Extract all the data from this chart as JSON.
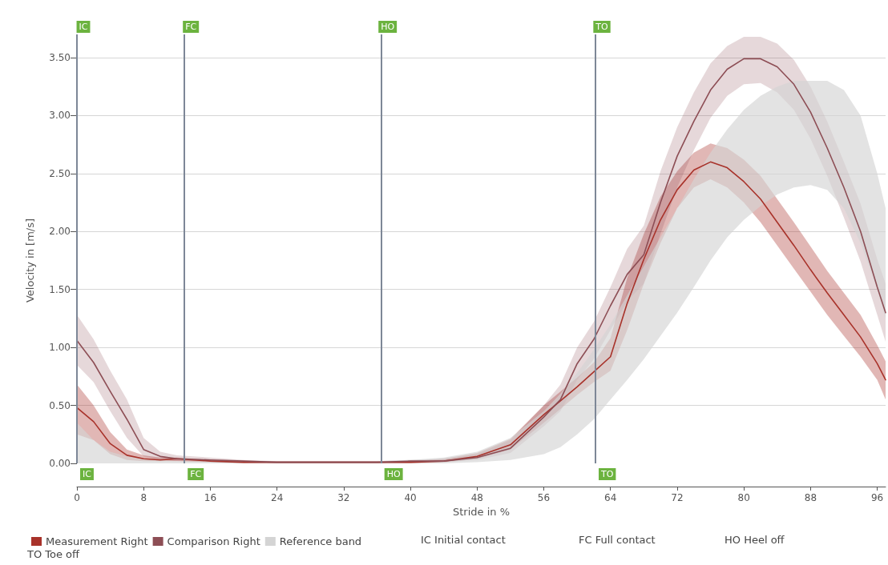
{
  "chart_data": {
    "type": "line",
    "xlabel": "Stride in %",
    "ylabel": "Velocity in [m/s]",
    "x": [
      0,
      2,
      4,
      6,
      8,
      10,
      12,
      16,
      20,
      24,
      28,
      32,
      36,
      40,
      44,
      48,
      52,
      56,
      58,
      60,
      62,
      64,
      66,
      68,
      70,
      72,
      74,
      76,
      78,
      80,
      82,
      84,
      86,
      88,
      90,
      92,
      94,
      96,
      97
    ],
    "series": [
      {
        "name": "Measurement Right",
        "color": "#a8322a",
        "values": [
          0.48,
          0.36,
          0.17,
          0.07,
          0.04,
          0.03,
          0.04,
          0.02,
          0.01,
          0.01,
          0.01,
          0.01,
          0.01,
          0.01,
          0.02,
          0.06,
          0.16,
          0.42,
          0.54,
          0.66,
          0.79,
          0.92,
          1.38,
          1.76,
          2.1,
          2.36,
          2.53,
          2.6,
          2.55,
          2.43,
          2.28,
          2.08,
          1.88,
          1.67,
          1.47,
          1.28,
          1.09,
          0.86,
          0.72
        ],
        "lower": [
          0.25,
          0.2,
          0.08,
          0.03,
          0.02,
          0.02,
          0.02,
          0.01,
          0,
          0,
          0,
          0,
          0,
          0,
          0.01,
          0.04,
          0.12,
          0.35,
          0.47,
          0.59,
          0.7,
          0.8,
          1.15,
          1.55,
          1.9,
          2.2,
          2.38,
          2.45,
          2.38,
          2.25,
          2.08,
          1.88,
          1.68,
          1.48,
          1.28,
          1.1,
          0.92,
          0.72,
          0.55
        ],
        "upper": [
          0.68,
          0.5,
          0.27,
          0.12,
          0.07,
          0.05,
          0.05,
          0.03,
          0.02,
          0.02,
          0.02,
          0.02,
          0.02,
          0.02,
          0.04,
          0.09,
          0.21,
          0.5,
          0.62,
          0.74,
          0.87,
          1.08,
          1.6,
          1.98,
          2.3,
          2.52,
          2.68,
          2.76,
          2.72,
          2.62,
          2.48,
          2.28,
          2.08,
          1.87,
          1.66,
          1.47,
          1.28,
          1.02,
          0.88
        ]
      },
      {
        "name": "Comparison Right",
        "color": "#8d4e55",
        "values": [
          1.06,
          0.87,
          0.62,
          0.38,
          0.12,
          0.06,
          0.04,
          0.03,
          0.02,
          0.01,
          0.01,
          0.01,
          0.01,
          0.02,
          0.02,
          0.05,
          0.13,
          0.4,
          0.55,
          0.86,
          1.07,
          1.36,
          1.63,
          1.8,
          2.25,
          2.65,
          2.95,
          3.22,
          3.4,
          3.49,
          3.49,
          3.42,
          3.27,
          3.03,
          2.72,
          2.38,
          2.0,
          1.52,
          1.3
        ],
        "lower": [
          0.85,
          0.7,
          0.45,
          0.22,
          0.06,
          0.03,
          0.02,
          0.01,
          0,
          0,
          0,
          0,
          0,
          0,
          0.01,
          0.03,
          0.09,
          0.32,
          0.45,
          0.72,
          0.9,
          1.15,
          1.4,
          1.55,
          1.98,
          2.38,
          2.7,
          2.98,
          3.17,
          3.27,
          3.28,
          3.2,
          3.05,
          2.8,
          2.48,
          2.12,
          1.74,
          1.28,
          1.05
        ],
        "upper": [
          1.28,
          1.07,
          0.8,
          0.55,
          0.22,
          0.1,
          0.07,
          0.05,
          0.03,
          0.02,
          0.02,
          0.02,
          0.02,
          0.03,
          0.04,
          0.08,
          0.2,
          0.5,
          0.68,
          1.0,
          1.22,
          1.52,
          1.85,
          2.05,
          2.52,
          2.9,
          3.2,
          3.45,
          3.6,
          3.68,
          3.68,
          3.62,
          3.48,
          3.25,
          2.95,
          2.6,
          2.24,
          1.76,
          1.55
        ]
      },
      {
        "name": "Reference band",
        "color": "#d4d4d4",
        "values": [
          null,
          null,
          null,
          null,
          null,
          null,
          null,
          null,
          null,
          null,
          null,
          null,
          null,
          null,
          null,
          null,
          null,
          null,
          null,
          null,
          null,
          null,
          null,
          null,
          null,
          null,
          null,
          null,
          null,
          null,
          null,
          null,
          null,
          null,
          null,
          null,
          null,
          null,
          null
        ],
        "lower": [
          0,
          0,
          0,
          0,
          0,
          0,
          0,
          0,
          0,
          0,
          0,
          0,
          0,
          0,
          0,
          0.01,
          0.03,
          0.08,
          0.14,
          0.25,
          0.38,
          0.55,
          0.72,
          0.9,
          1.1,
          1.3,
          1.52,
          1.75,
          1.95,
          2.1,
          2.22,
          2.32,
          2.38,
          2.4,
          2.36,
          2.2,
          1.9,
          1.5,
          1.25
        ],
        "upper": [
          0.35,
          0.2,
          0.1,
          0.06,
          0.04,
          0.03,
          0.02,
          0.02,
          0.02,
          0.02,
          0.02,
          0.02,
          0.02,
          0.03,
          0.05,
          0.1,
          0.22,
          0.45,
          0.6,
          0.78,
          0.98,
          1.2,
          1.45,
          1.7,
          1.95,
          2.2,
          2.45,
          2.68,
          2.88,
          3.05,
          3.17,
          3.25,
          3.3,
          3.3,
          3.3,
          3.22,
          3.0,
          2.5,
          2.2
        ]
      }
    ],
    "xlim": [
      0,
      97
    ],
    "xticks": [
      0,
      8,
      16,
      24,
      32,
      40,
      48,
      56,
      64,
      72,
      80,
      88,
      96
    ],
    "ylim": [
      -0.2,
      3.7
    ],
    "yticks": [
      {
        "value": 0,
        "label": "0.00"
      },
      {
        "value": 0.5,
        "label": "0.50"
      },
      {
        "value": 1,
        "label": "1.00"
      },
      {
        "value": 1.5,
        "label": "1.50"
      },
      {
        "value": 2,
        "label": "2.00"
      },
      {
        "value": 2.5,
        "label": "2.50"
      },
      {
        "value": 3,
        "label": "3.00"
      },
      {
        "value": 3.5,
        "label": "3.50"
      }
    ],
    "ref_lines": [
      {
        "axis": "x",
        "value": 0,
        "label": "IC",
        "color": "#7d8797"
      },
      {
        "axis": "x",
        "value": 12.9,
        "label": "FC",
        "color": "#7d8797"
      },
      {
        "axis": "x",
        "value": 36.5,
        "label": "HO",
        "color": "#7d8797"
      },
      {
        "axis": "x",
        "value": 62.2,
        "label": "TO",
        "color": "#7d8797"
      }
    ],
    "annotations": [
      "IC Initial contact",
      "FC Full contact",
      "HO Heel off",
      "TO Toe off"
    ],
    "grid": "y",
    "legend": "bottom left",
    "marker": "none",
    "line_style": "solid"
  }
}
